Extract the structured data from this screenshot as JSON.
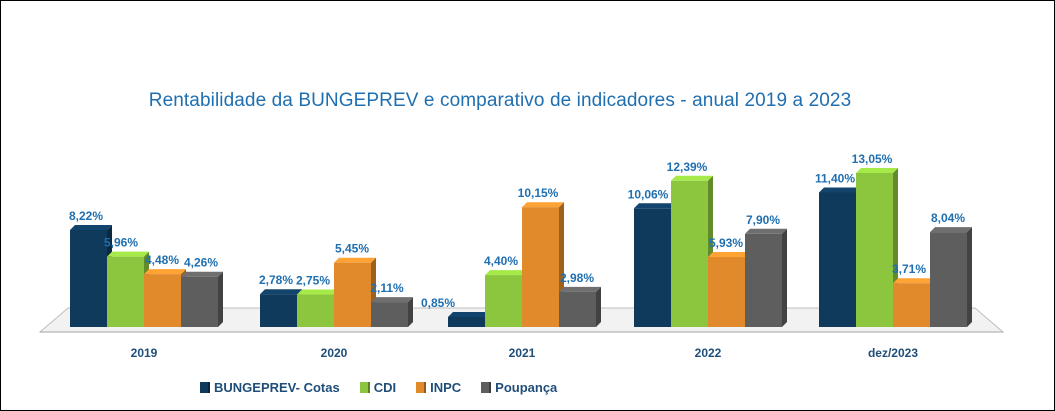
{
  "chart_data": {
    "type": "bar",
    "title": "Rentabilidade  da BUNGEPREV  e comparativo de indicadores  - anual  2019 a 2023",
    "categories": [
      "2019",
      "2020",
      "2021",
      "2022",
      "dez/2023"
    ],
    "series": [
      {
        "name": "BUNGEPREV- Cotas",
        "color": "#0f3a5c",
        "values": [
          8.22,
          2.78,
          0.85,
          10.06,
          11.4
        ],
        "labels": [
          "8,22%",
          "2,78%",
          "0,85%",
          "10,06%",
          "11,40%"
        ]
      },
      {
        "name": "CDI",
        "color": "#8cc63e",
        "values": [
          5.96,
          2.75,
          4.4,
          12.39,
          13.05
        ],
        "labels": [
          "5,96%",
          "2,75%",
          "4,40%",
          "12,39%",
          "13,05%"
        ]
      },
      {
        "name": "INPC",
        "color": "#e08a2c",
        "values": [
          4.48,
          5.45,
          10.15,
          5.93,
          3.71
        ],
        "labels": [
          "4,48%",
          "5,45%",
          "10,15%",
          "5,93%",
          "3,71%"
        ]
      },
      {
        "name": "Poupança",
        "color": "#5e5e5e",
        "values": [
          4.26,
          2.11,
          2.98,
          7.9,
          8.04
        ],
        "labels": [
          "4,26%",
          "2,11%",
          "2,98%",
          "7,90%",
          "8,04%"
        ]
      }
    ],
    "ylim": [
      0,
      14
    ],
    "grid": false,
    "legend_position": "bottom",
    "label_color": "#1f6fb0",
    "axis_label_color": "#1f4e79"
  }
}
